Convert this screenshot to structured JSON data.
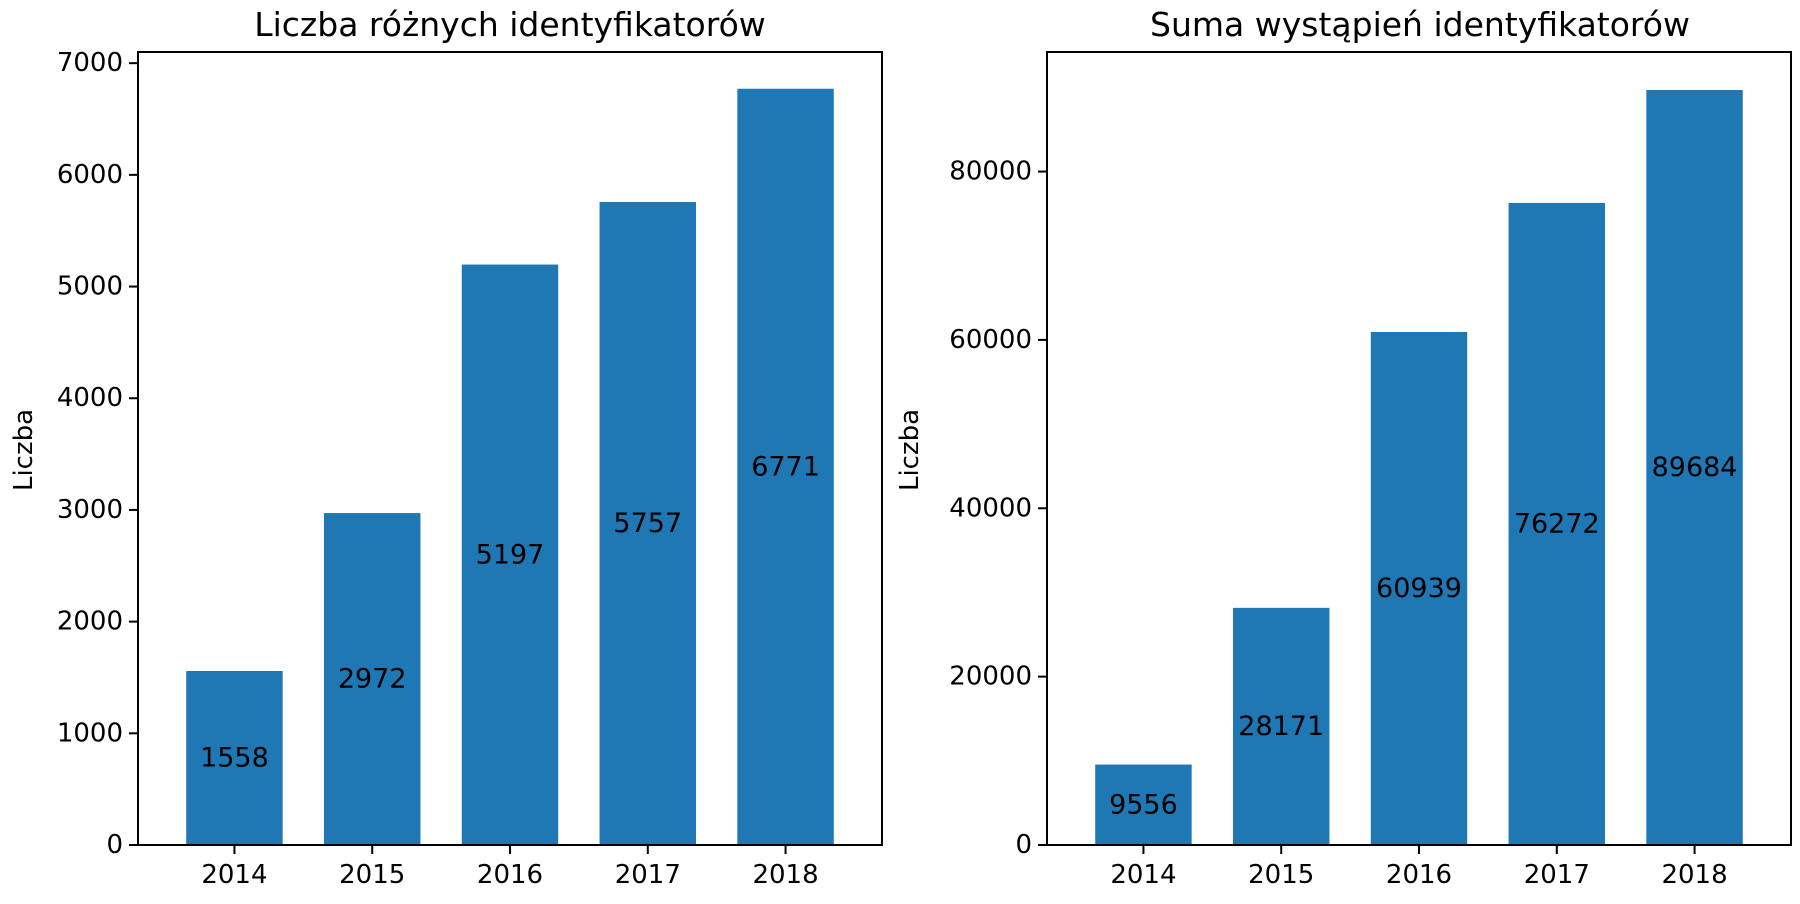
{
  "chart_data": [
    {
      "type": "bar",
      "title": "Liczba różnych identyfikatorów",
      "xlabel": "",
      "ylabel": "Liczba",
      "categories": [
        "2014",
        "2015",
        "2016",
        "2017",
        "2018"
      ],
      "values": [
        1558,
        2972,
        5197,
        5757,
        6771
      ],
      "data_labels": [
        "1558",
        "2972",
        "5197",
        "5757",
        "6771"
      ],
      "ylim": [
        0,
        7100
      ],
      "yticks": [
        0,
        1000,
        2000,
        3000,
        4000,
        5000,
        6000,
        7000
      ],
      "ytick_labels": [
        "0",
        "1000",
        "2000",
        "3000",
        "4000",
        "5000",
        "6000",
        "7000"
      ],
      "bar_color": "#1f77b4",
      "grid": false,
      "data_label_position": "middle of bar"
    },
    {
      "type": "bar",
      "title": "Suma wystąpień identyfikatorów",
      "xlabel": "",
      "ylabel": "Liczba",
      "categories": [
        "2014",
        "2015",
        "2016",
        "2017",
        "2018"
      ],
      "values": [
        9556,
        28171,
        60939,
        76272,
        89684
      ],
      "data_labels": [
        "9556",
        "28171",
        "60939",
        "76272",
        "89684"
      ],
      "ylim": [
        0,
        94200
      ],
      "yticks": [
        0,
        20000,
        40000,
        60000,
        80000
      ],
      "ytick_labels": [
        "0",
        "20000",
        "40000",
        "60000",
        "80000"
      ],
      "bar_color": "#1f77b4",
      "grid": false,
      "data_label_position": "middle of bar"
    }
  ]
}
